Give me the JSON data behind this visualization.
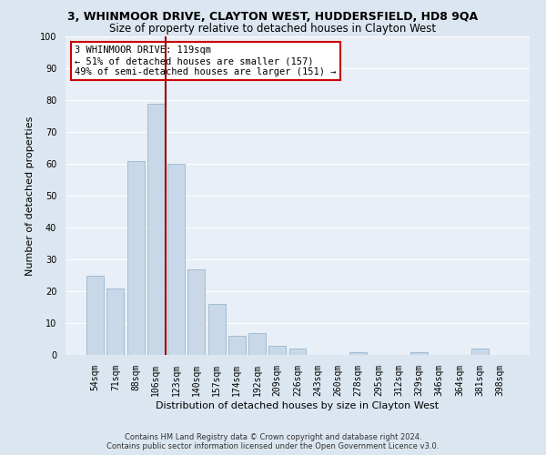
{
  "title": "3, WHINMOOR DRIVE, CLAYTON WEST, HUDDERSFIELD, HD8 9QA",
  "subtitle": "Size of property relative to detached houses in Clayton West",
  "xlabel": "Distribution of detached houses by size in Clayton West",
  "ylabel": "Number of detached properties",
  "bar_color": "#c8d8e8",
  "bar_edge_color": "#8aaec8",
  "categories": [
    "54sqm",
    "71sqm",
    "88sqm",
    "106sqm",
    "123sqm",
    "140sqm",
    "157sqm",
    "174sqm",
    "192sqm",
    "209sqm",
    "226sqm",
    "243sqm",
    "260sqm",
    "278sqm",
    "295sqm",
    "312sqm",
    "329sqm",
    "346sqm",
    "364sqm",
    "381sqm",
    "398sqm"
  ],
  "values": [
    25,
    21,
    61,
    79,
    60,
    27,
    16,
    6,
    7,
    3,
    2,
    0,
    0,
    1,
    0,
    0,
    1,
    0,
    0,
    2,
    0
  ],
  "vline_index": 3.5,
  "vline_color": "#990000",
  "ylim": [
    0,
    100
  ],
  "yticks": [
    0,
    10,
    20,
    30,
    40,
    50,
    60,
    70,
    80,
    90,
    100
  ],
  "annotation_title": "3 WHINMOOR DRIVE: 119sqm",
  "annotation_line1": "← 51% of detached houses are smaller (157)",
  "annotation_line2": "49% of semi-detached houses are larger (151) →",
  "annotation_box_color": "#ffffff",
  "annotation_box_edge": "#cc0000",
  "footer1": "Contains HM Land Registry data © Crown copyright and database right 2024.",
  "footer2": "Contains public sector information licensed under the Open Government Licence v3.0.",
  "background_color": "#dce6f0",
  "plot_bg_color": "#e8eff6",
  "grid_color": "#ffffff",
  "title_fontsize": 9,
  "subtitle_fontsize": 8.5,
  "tick_fontsize": 7,
  "ylabel_fontsize": 8,
  "xlabel_fontsize": 8,
  "footer_fontsize": 6,
  "annotation_fontsize": 7.5
}
